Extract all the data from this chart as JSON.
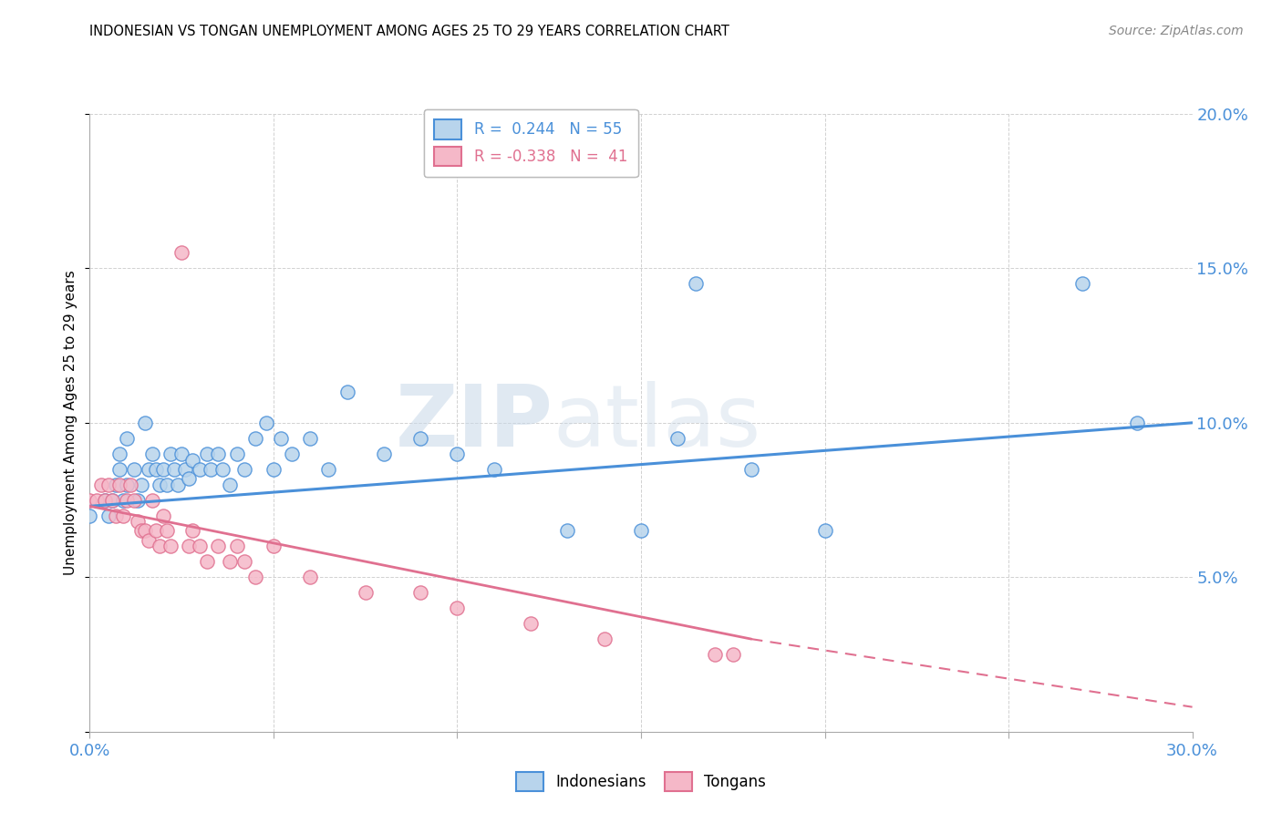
{
  "title": "INDONESIAN VS TONGAN UNEMPLOYMENT AMONG AGES 25 TO 29 YEARS CORRELATION CHART",
  "source": "Source: ZipAtlas.com",
  "ylabel": "Unemployment Among Ages 25 to 29 years",
  "xlim": [
    0.0,
    0.3
  ],
  "ylim": [
    0.0,
    0.2
  ],
  "xticks": [
    0.0,
    0.05,
    0.1,
    0.15,
    0.2,
    0.25,
    0.3
  ],
  "yticks": [
    0.0,
    0.05,
    0.1,
    0.15,
    0.2
  ],
  "watermark_zip": "ZIP",
  "watermark_atlas": "atlas",
  "legend_r1": "R =  0.244   N = 55",
  "legend_r2": "R = -0.338   N =  41",
  "indonesian_color": "#b8d4ec",
  "tongan_color": "#f5b8c8",
  "indonesian_line_color": "#4a90d9",
  "tongan_line_color": "#e07090",
  "indonesian_scatter": [
    [
      0.0,
      0.07
    ],
    [
      0.004,
      0.075
    ],
    [
      0.005,
      0.07
    ],
    [
      0.006,
      0.075
    ],
    [
      0.007,
      0.08
    ],
    [
      0.008,
      0.085
    ],
    [
      0.008,
      0.09
    ],
    [
      0.009,
      0.075
    ],
    [
      0.01,
      0.095
    ],
    [
      0.01,
      0.08
    ],
    [
      0.012,
      0.085
    ],
    [
      0.013,
      0.075
    ],
    [
      0.014,
      0.08
    ],
    [
      0.015,
      0.1
    ],
    [
      0.016,
      0.085
    ],
    [
      0.017,
      0.09
    ],
    [
      0.018,
      0.085
    ],
    [
      0.019,
      0.08
    ],
    [
      0.02,
      0.085
    ],
    [
      0.021,
      0.08
    ],
    [
      0.022,
      0.09
    ],
    [
      0.023,
      0.085
    ],
    [
      0.024,
      0.08
    ],
    [
      0.025,
      0.09
    ],
    [
      0.026,
      0.085
    ],
    [
      0.027,
      0.082
    ],
    [
      0.028,
      0.088
    ],
    [
      0.03,
      0.085
    ],
    [
      0.032,
      0.09
    ],
    [
      0.033,
      0.085
    ],
    [
      0.035,
      0.09
    ],
    [
      0.036,
      0.085
    ],
    [
      0.038,
      0.08
    ],
    [
      0.04,
      0.09
    ],
    [
      0.042,
      0.085
    ],
    [
      0.045,
      0.095
    ],
    [
      0.048,
      0.1
    ],
    [
      0.05,
      0.085
    ],
    [
      0.052,
      0.095
    ],
    [
      0.055,
      0.09
    ],
    [
      0.06,
      0.095
    ],
    [
      0.065,
      0.085
    ],
    [
      0.07,
      0.11
    ],
    [
      0.08,
      0.09
    ],
    [
      0.09,
      0.095
    ],
    [
      0.1,
      0.09
    ],
    [
      0.11,
      0.085
    ],
    [
      0.13,
      0.065
    ],
    [
      0.15,
      0.065
    ],
    [
      0.16,
      0.095
    ],
    [
      0.165,
      0.145
    ],
    [
      0.18,
      0.085
    ],
    [
      0.2,
      0.065
    ],
    [
      0.27,
      0.145
    ],
    [
      0.285,
      0.1
    ]
  ],
  "tongan_scatter": [
    [
      0.0,
      0.075
    ],
    [
      0.002,
      0.075
    ],
    [
      0.003,
      0.08
    ],
    [
      0.004,
      0.075
    ],
    [
      0.005,
      0.08
    ],
    [
      0.006,
      0.075
    ],
    [
      0.007,
      0.07
    ],
    [
      0.008,
      0.08
    ],
    [
      0.009,
      0.07
    ],
    [
      0.01,
      0.075
    ],
    [
      0.011,
      0.08
    ],
    [
      0.012,
      0.075
    ],
    [
      0.013,
      0.068
    ],
    [
      0.014,
      0.065
    ],
    [
      0.015,
      0.065
    ],
    [
      0.016,
      0.062
    ],
    [
      0.017,
      0.075
    ],
    [
      0.018,
      0.065
    ],
    [
      0.019,
      0.06
    ],
    [
      0.02,
      0.07
    ],
    [
      0.021,
      0.065
    ],
    [
      0.022,
      0.06
    ],
    [
      0.025,
      0.155
    ],
    [
      0.027,
      0.06
    ],
    [
      0.028,
      0.065
    ],
    [
      0.03,
      0.06
    ],
    [
      0.032,
      0.055
    ],
    [
      0.035,
      0.06
    ],
    [
      0.038,
      0.055
    ],
    [
      0.04,
      0.06
    ],
    [
      0.042,
      0.055
    ],
    [
      0.045,
      0.05
    ],
    [
      0.05,
      0.06
    ],
    [
      0.06,
      0.05
    ],
    [
      0.075,
      0.045
    ],
    [
      0.09,
      0.045
    ],
    [
      0.1,
      0.04
    ],
    [
      0.12,
      0.035
    ],
    [
      0.14,
      0.03
    ],
    [
      0.17,
      0.025
    ],
    [
      0.175,
      0.025
    ]
  ],
  "indonesian_trendline": [
    [
      0.0,
      0.073
    ],
    [
      0.3,
      0.1
    ]
  ],
  "tongan_trendline_solid": [
    [
      0.0,
      0.073
    ],
    [
      0.18,
      0.03
    ]
  ],
  "tongan_trendline_dashed": [
    [
      0.18,
      0.03
    ],
    [
      0.3,
      0.008
    ]
  ]
}
